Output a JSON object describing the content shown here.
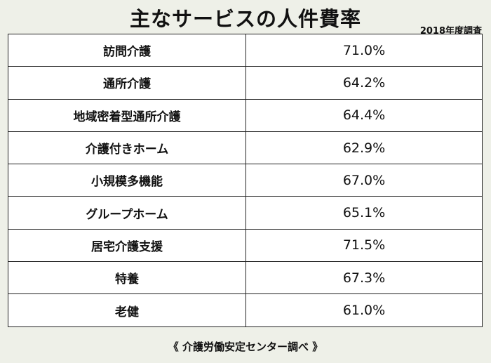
{
  "title": "主なサービスの人件費率",
  "survey_note": "2018年度調査",
  "source": "《 介護労働安定センター調べ 》",
  "chart_data": {
    "type": "table",
    "title": "主なサービスの人件費率",
    "categories": [
      "訪問介護",
      "通所介護",
      "地域密着型通所介護",
      "介護付きホーム",
      "小規模多機能",
      "グループホーム",
      "居宅介護支援",
      "特養",
      "老健"
    ],
    "values": [
      71.0,
      64.2,
      64.4,
      62.9,
      67.0,
      65.1,
      71.5,
      67.3,
      61.0
    ],
    "value_labels": [
      "71.0%",
      "64.2%",
      "64.4%",
      "62.9%",
      "67.0%",
      "65.1%",
      "71.5%",
      "67.3%",
      "61.0%"
    ],
    "unit": "%"
  }
}
